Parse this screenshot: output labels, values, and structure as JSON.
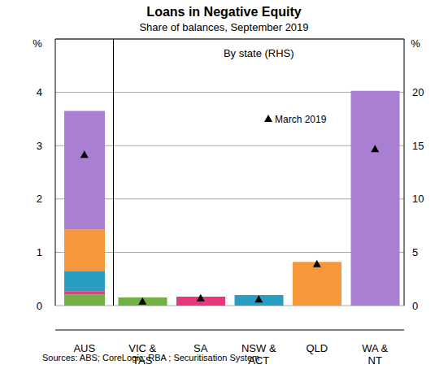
{
  "chart_data": {
    "type": "bar",
    "title": "Loans in Negative Equity",
    "subtitle": "Share of balances, September 2019",
    "ylabel": "%",
    "y2label": "%",
    "panel_label": "By state (RHS)",
    "marker_label": "March 2019",
    "source": "Sources: ABS; CoreLogic; RBA ; Securitisation System",
    "categories": [
      "AUS",
      "VIC & TAS",
      "SA",
      "NSW & ACT",
      "QLD",
      "WA & NT"
    ],
    "stacked": true,
    "grid": true,
    "ylim": [
      0,
      5
    ],
    "yticks": [
      0,
      1,
      2,
      3,
      4
    ],
    "y2lim": [
      0,
      25
    ],
    "y2ticks": [
      0,
      5,
      10,
      15,
      20
    ],
    "series": [
      {
        "name": "VIC & TAS",
        "color": "#72b043",
        "values": [
          0.21,
          null,
          null,
          null,
          null,
          null
        ]
      },
      {
        "name": "SA",
        "color": "#e6377f",
        "values": [
          0.06,
          null,
          null,
          null,
          null,
          null
        ]
      },
      {
        "name": "NSW & ACT",
        "color": "#2a9dc2",
        "values": [
          0.38,
          null,
          null,
          null,
          null,
          null
        ]
      },
      {
        "name": "QLD",
        "color": "#f5973a",
        "values": [
          0.78,
          null,
          null,
          null,
          null,
          null
        ]
      },
      {
        "name": "WA & NT",
        "color": "#a97fd1",
        "values": [
          2.22,
          null,
          null,
          null,
          null,
          null
        ]
      },
      {
        "axis": "y2",
        "values": [
          null,
          0.76,
          0.84,
          0.99,
          4.1,
          20.15
        ]
      },
      {
        "type": "scatter",
        "marker": "triangle",
        "color": "#000000",
        "values": [
          2.83,
          null,
          null,
          null,
          null,
          null
        ]
      },
      {
        "type": "scatter",
        "marker": "triangle",
        "color": "#000000",
        "axis": "y2",
        "values": [
          null,
          0.4,
          0.7,
          0.6,
          3.9,
          14.7
        ]
      }
    ]
  }
}
